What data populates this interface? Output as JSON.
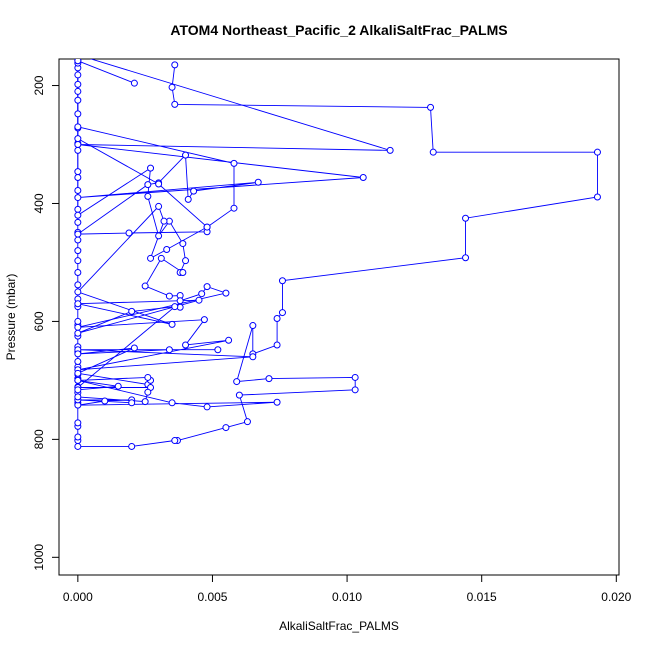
{
  "chart_data": {
    "type": "line",
    "title": "ATOM4 Northeast_Pacific_2 AlkaliSaltFrac_PALMS",
    "xlabel": "AlkaliSaltFrac_PALMS",
    "ylabel": "Pressure (mbar)",
    "xlim": [
      -0.0007,
      0.0201
    ],
    "ylim": [
      1030,
      155
    ],
    "y_inverted": true,
    "grid": false,
    "line_color": "#0000ff",
    "marker": "open-circle",
    "xticks": [
      {
        "value": 0.0,
        "label": "0.000"
      },
      {
        "value": 0.005,
        "label": "0.005"
      },
      {
        "value": 0.01,
        "label": "0.010"
      },
      {
        "value": 0.015,
        "label": "0.015"
      },
      {
        "value": 0.02,
        "label": "0.020"
      }
    ],
    "yticks": [
      {
        "value": 200,
        "label": "200"
      },
      {
        "value": 400,
        "label": "400"
      },
      {
        "value": 600,
        "label": "600"
      },
      {
        "value": 800,
        "label": "800"
      },
      {
        "value": 1000,
        "label": "1000"
      }
    ],
    "series": [
      {
        "points": [
          [
            0.0036,
            165
          ],
          [
            0.0035,
            203
          ],
          [
            0.0036,
            232
          ],
          [
            0.0131,
            237
          ],
          [
            0.0132,
            313
          ],
          [
            0.0193,
            313
          ],
          [
            0.0193,
            389
          ],
          [
            0.0144,
            425
          ],
          [
            0.0144,
            492
          ],
          [
            0.0076,
            531
          ],
          [
            0.0076,
            585
          ],
          [
            0.0074,
            595
          ],
          [
            0.0074,
            640
          ],
          [
            0.0065,
            655
          ],
          [
            0.0065,
            607
          ],
          [
            0.0059,
            702
          ],
          [
            0.0071,
            697
          ],
          [
            0.0103,
            695
          ],
          [
            0.0103,
            716
          ],
          [
            0.006,
            725
          ],
          [
            0.0063,
            770
          ],
          [
            0.0055,
            780
          ],
          [
            0.0037,
            802
          ],
          [
            0.0036,
            802
          ],
          [
            0.002,
            812
          ],
          [
            0.0,
            812
          ],
          [
            0.0,
            802
          ],
          [
            0.0,
            796
          ],
          [
            0.0,
            778
          ],
          [
            0.0,
            772
          ],
          [
            0.0,
            738
          ],
          [
            0.0,
            733
          ],
          [
            0.0,
            721
          ],
          [
            0.0,
            711
          ],
          [
            0.0,
            697
          ],
          [
            0.0,
            690
          ],
          [
            0.0,
            677
          ],
          [
            0.0,
            668
          ],
          [
            0.0,
            652
          ],
          [
            0.0,
            643
          ],
          [
            0.0,
            625
          ],
          [
            0.0,
            606
          ],
          [
            0.0,
            600
          ],
          [
            0.0,
            575
          ],
          [
            0.0,
            562
          ],
          [
            0.0,
            538
          ],
          [
            0.0,
            517
          ],
          [
            0.0,
            497
          ],
          [
            0.0,
            480
          ],
          [
            0.0,
            462
          ],
          [
            0.0,
            449
          ],
          [
            0.0,
            432
          ],
          [
            0.0,
            410
          ],
          [
            0.0,
            378
          ],
          [
            0.0,
            356
          ],
          [
            0.0,
            346
          ],
          [
            0.0,
            310
          ],
          [
            0.0,
            298
          ],
          [
            0.0,
            272
          ],
          [
            0.0,
            248
          ],
          [
            0.0,
            225
          ],
          [
            0.0,
            210
          ],
          [
            0.0,
            198
          ],
          [
            0.0,
            182
          ],
          [
            0.0,
            170
          ],
          [
            0.0,
            162
          ],
          [
            0.0,
            158
          ]
        ]
      },
      {
        "points": [
          [
            0.0,
            270
          ],
          [
            0.0058,
            332
          ],
          [
            0.0058,
            408
          ],
          [
            0.0048,
            440
          ],
          [
            0.0048,
            448
          ],
          [
            0.0019,
            450
          ],
          [
            0.0,
            452
          ],
          [
            0.0026,
            368
          ],
          [
            0.003,
            365
          ],
          [
            0.004,
            318
          ],
          [
            0.0041,
            393
          ],
          [
            0.0043,
            379
          ],
          [
            0.0067,
            364
          ],
          [
            0.0,
            390
          ],
          [
            0.0106,
            356
          ],
          [
            0.0,
            300
          ],
          [
            0.0116,
            310
          ],
          [
            0.0,
            148
          ],
          [
            0.0,
            420
          ],
          [
            0.0027,
            340
          ],
          [
            0.0026,
            388
          ],
          [
            0.003,
            455
          ],
          [
            0.0034,
            430
          ],
          [
            0.0039,
            468
          ],
          [
            0.004,
            497
          ],
          [
            0.0038,
            517
          ],
          [
            0.0039,
            517
          ],
          [
            0.0031,
            493
          ],
          [
            0.0025,
            540
          ],
          [
            0.0034,
            557
          ],
          [
            0.0038,
            556
          ],
          [
            0.0038,
            576
          ],
          [
            0.0038,
            565
          ],
          [
            0.0046,
            553
          ],
          [
            0.0048,
            541
          ],
          [
            0.0055,
            552
          ],
          [
            0.0,
            610
          ],
          [
            0.0047,
            597
          ],
          [
            0.004,
            640
          ],
          [
            0.0056,
            632
          ],
          [
            0.0,
            682
          ],
          [
            0.0065,
            660
          ],
          [
            0.0,
            648
          ],
          [
            0.0052,
            648
          ],
          [
            0.0034,
            648
          ],
          [
            0.0,
            655
          ],
          [
            0.0021,
            645
          ],
          [
            0.0,
            688
          ],
          [
            0.0026,
            707
          ],
          [
            0.0027,
            700
          ],
          [
            0.0026,
            695
          ],
          [
            0.0,
            700
          ],
          [
            0.0035,
            738
          ],
          [
            0.0048,
            745
          ],
          [
            0.0074,
            737
          ],
          [
            0.0,
            742
          ],
          [
            0.001,
            735
          ],
          [
            0.002,
            733
          ],
          [
            0.0,
            733
          ],
          [
            0.002,
            738
          ]
        ]
      },
      {
        "points": [
          [
            0.0021,
            196
          ],
          [
            0.0,
            158
          ],
          [
            0.0,
            290
          ],
          [
            0.003,
            367
          ],
          [
            0.0048,
            440
          ],
          [
            0.0033,
            478
          ],
          [
            0.0027,
            493
          ],
          [
            0.0032,
            430
          ],
          [
            0.003,
            405
          ],
          [
            0.0,
            550
          ],
          [
            0.0035,
            605
          ],
          [
            0.0,
            570
          ],
          [
            0.0045,
            564
          ],
          [
            0.0,
            620
          ],
          [
            0.002,
            583
          ],
          [
            0.0036,
            575
          ],
          [
            0.0,
            712
          ],
          [
            0.0027,
            712
          ],
          [
            0.0026,
            720
          ],
          [
            0.0025,
            736
          ],
          [
            0.0,
            728
          ],
          [
            0.0,
            700
          ],
          [
            0.0015,
            710
          ],
          [
            0.0,
            716
          ]
        ]
      }
    ]
  }
}
